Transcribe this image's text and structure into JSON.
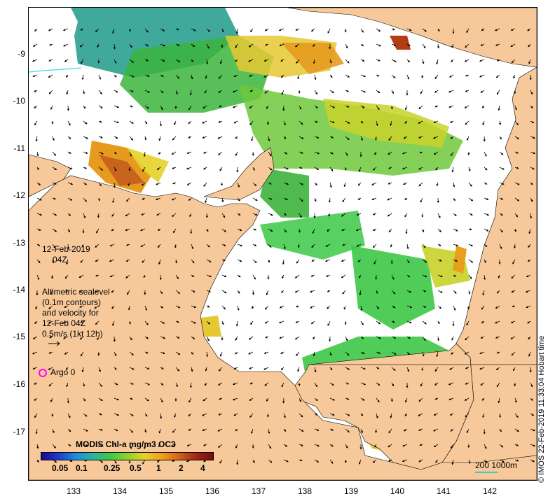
{
  "map": {
    "date": "12-Feb-2019",
    "time": "04Z",
    "altimetry": {
      "lines": [
        "Altimetric sealevel",
        "(0.1m contours)",
        "and velocity for",
        "12-Feb 04Z",
        "0.5m/s (1kt 12h)"
      ]
    },
    "argo": "Argo 0",
    "scale_label": "200  1000m",
    "credit": "© IMOS 22-Feb-2019 11:33:04 Hobart time",
    "x_ticks": [
      "133",
      "134",
      "135",
      "136",
      "137",
      "138",
      "139",
      "140",
      "141",
      "142"
    ],
    "y_ticks": [
      "-9",
      "-10",
      "-11",
      "-12",
      "-13",
      "-14",
      "-15",
      "-16",
      "-17"
    ],
    "colors": {
      "land": "#f7c99a",
      "water": "#ffffff",
      "argo": "#ff00ff"
    }
  },
  "colorbar": {
    "title": "MODIS Chl-a mg/m3 OC3",
    "ticks": [
      "0.05",
      "0.1",
      "0.25",
      "0.5",
      "1",
      "2",
      "4"
    ],
    "colors": [
      "#1a0a8c",
      "#1e3cc8",
      "#1e8cdc",
      "#28b4a0",
      "#3cc846",
      "#8cd232",
      "#e6d228",
      "#f0a01e",
      "#d2641e",
      "#a02814",
      "#780a0a"
    ]
  }
}
